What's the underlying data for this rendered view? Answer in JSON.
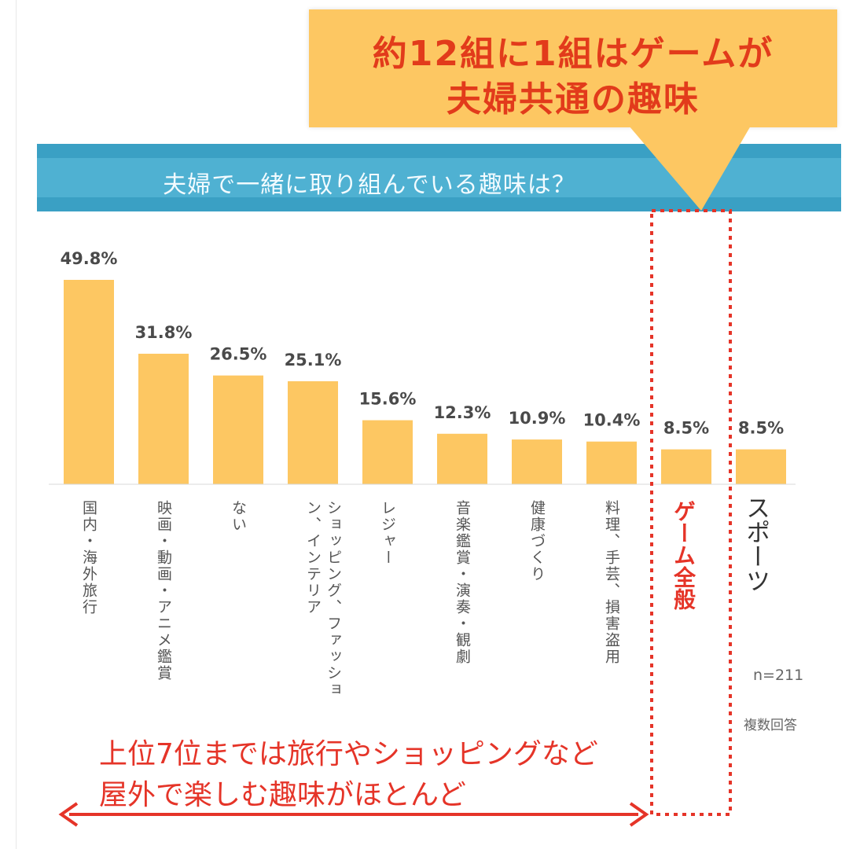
{
  "callout": {
    "line1": "約12組に1組はゲームが",
    "line2": "夫婦共通の趣味"
  },
  "question": "夫婦で一緒に取り組んでいる趣味は？",
  "colors": {
    "bar": "#fdc762",
    "title_band": "#4fb1d2",
    "highlight": "#e53428",
    "callout_text": "#e23b1b"
  },
  "chart_data": {
    "type": "bar",
    "title": "夫婦で一緒に取り組んでいる趣味は？",
    "categories": [
      "国内・海外旅行",
      "映画・動画・アニメ鑑賞",
      "ない",
      "ショッピング、ファッション、インテリア",
      "レジャー",
      "音楽鑑賞・演奏・観劇",
      "健康づくり",
      "料理、手芸、損害盗用",
      "ゲーム全般",
      "スポーツ"
    ],
    "values": [
      49.8,
      31.8,
      26.5,
      25.1,
      15.6,
      12.3,
      10.9,
      10.4,
      8.5,
      8.5
    ],
    "value_labels": [
      "49.8%",
      "31.8%",
      "26.5%",
      "25.1%",
      "15.6%",
      "12.3%",
      "10.9%",
      "10.4%",
      "8.5%",
      "8.5%"
    ],
    "highlight_index": 8,
    "ylim": [
      0,
      50
    ],
    "grid": false,
    "legend": "none"
  },
  "sample_size": "n=211",
  "note": "複数回答",
  "conclusion": {
    "line1": "上位7位までは旅行やショッピングなど",
    "line2": "屋外で楽しむ趣味がほとんど"
  }
}
